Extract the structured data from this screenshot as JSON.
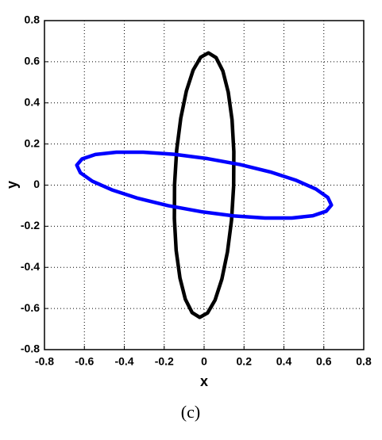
{
  "chart_data": {
    "type": "line",
    "caption": "(c)",
    "xlabel": "x",
    "ylabel": "y",
    "xlim": [
      -0.8,
      0.8
    ],
    "ylim": [
      -0.8,
      0.8
    ],
    "xticks": [
      -0.8,
      -0.6,
      -0.4,
      -0.2,
      0,
      0.2,
      0.4,
      0.6,
      0.8
    ],
    "yticks": [
      -0.8,
      -0.6,
      -0.4,
      -0.2,
      0,
      0.2,
      0.4,
      0.6,
      0.8
    ],
    "grid": true,
    "series": [
      {
        "color": "#000000",
        "x": [
          0.1375,
          0.148,
          0.149,
          0.14,
          0.121,
          0.094,
          0.06,
          0.022,
          -0.017,
          -0.055,
          -0.089,
          -0.117,
          -0.1375,
          -0.148,
          -0.149,
          -0.14,
          -0.121,
          -0.094,
          -0.06,
          -0.022,
          0.017,
          0.055,
          0.089,
          0.117,
          0.1375
        ],
        "values": [
          -0.17,
          -0.004,
          0.163,
          0.318,
          0.452,
          0.555,
          0.62,
          0.643,
          0.622,
          0.559,
          0.457,
          0.325,
          0.17,
          0.004,
          -0.163,
          -0.318,
          -0.452,
          -0.555,
          -0.62,
          -0.643,
          -0.622,
          -0.559,
          -0.457,
          -0.325,
          -0.17
        ]
      },
      {
        "color": "#0000ff",
        "x": [
          0.62,
          0.56,
          0.462,
          0.332,
          0.18,
          0.016,
          -0.15,
          -0.305,
          -0.44,
          -0.545,
          -0.612,
          -0.638,
          -0.62,
          -0.56,
          -0.462,
          -0.332,
          -0.18,
          -0.016,
          0.15,
          0.305,
          0.44,
          0.545,
          0.612,
          0.638,
          0.62
        ],
        "values": [
          -0.06,
          -0.019,
          0.023,
          0.064,
          0.1,
          0.129,
          0.15,
          0.16,
          0.16,
          0.149,
          0.127,
          0.097,
          0.06,
          0.019,
          -0.023,
          -0.064,
          -0.1,
          -0.129,
          -0.15,
          -0.16,
          -0.16,
          -0.149,
          -0.127,
          -0.097,
          -0.06
        ]
      }
    ]
  }
}
